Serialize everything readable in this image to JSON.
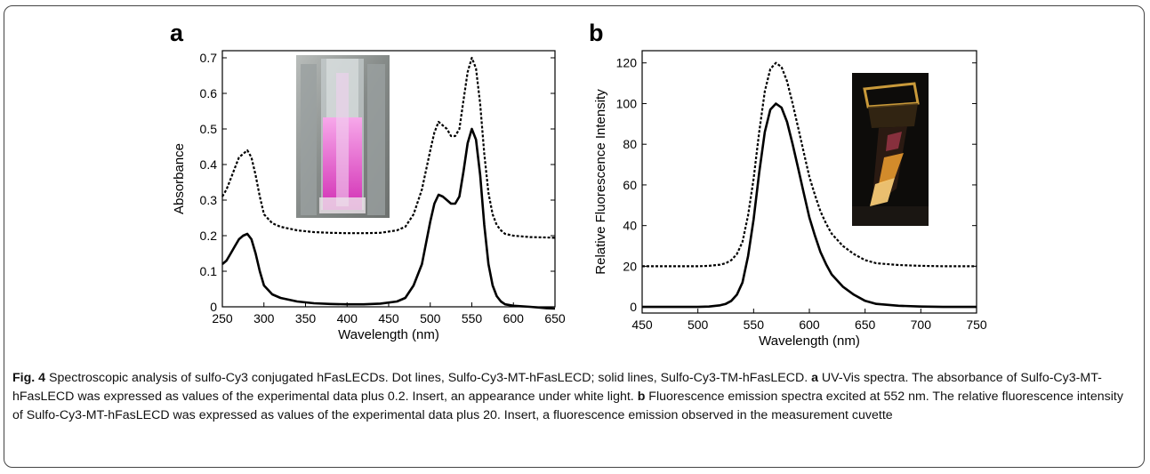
{
  "panels": [
    {
      "letter": "a",
      "chart_data": {
        "type": "line",
        "xlabel": "Wavelength (nm)",
        "ylabel": "Absorbance",
        "xlim": [
          250,
          650
        ],
        "ylim": [
          0,
          0.72
        ],
        "xticks": [
          250,
          300,
          350,
          400,
          450,
          500,
          550,
          600,
          650
        ],
        "yticks": [
          0,
          0.1,
          0.2,
          0.3,
          0.4,
          0.5,
          0.6,
          0.7
        ],
        "ytick_labels": [
          "0",
          "0.1",
          "0.2",
          "0.3",
          "0.4",
          "0.5",
          "0.6",
          "0.7"
        ],
        "series": [
          {
            "style": "dotted",
            "x": [
              250,
              255,
              260,
              265,
              270,
              275,
              280,
              285,
              290,
              295,
              300,
              310,
              320,
              340,
              360,
              380,
              400,
              420,
              440,
              460,
              470,
              480,
              490,
              500,
              505,
              510,
              515,
              520,
              525,
              530,
              535,
              540,
              545,
              550,
              555,
              560,
              565,
              570,
              575,
              580,
              585,
              590,
              600,
              620,
              640,
              650
            ],
            "y": [
              0.31,
              0.33,
              0.36,
              0.39,
              0.42,
              0.43,
              0.44,
              0.42,
              0.37,
              0.31,
              0.26,
              0.235,
              0.225,
              0.215,
              0.21,
              0.208,
              0.207,
              0.207,
              0.208,
              0.215,
              0.225,
              0.26,
              0.33,
              0.44,
              0.49,
              0.52,
              0.51,
              0.5,
              0.48,
              0.48,
              0.5,
              0.58,
              0.66,
              0.7,
              0.67,
              0.57,
              0.43,
              0.32,
              0.26,
              0.23,
              0.215,
              0.205,
              0.2,
              0.196,
              0.195,
              0.194
            ]
          },
          {
            "style": "solid",
            "x": [
              250,
              255,
              260,
              265,
              270,
              275,
              280,
              285,
              290,
              295,
              300,
              310,
              320,
              340,
              360,
              380,
              400,
              420,
              440,
              460,
              470,
              480,
              490,
              500,
              505,
              510,
              515,
              520,
              525,
              530,
              535,
              540,
              545,
              550,
              555,
              560,
              565,
              570,
              575,
              580,
              585,
              590,
              600,
              620,
              640,
              650
            ],
            "y": [
              0.12,
              0.13,
              0.15,
              0.17,
              0.19,
              0.2,
              0.205,
              0.19,
              0.15,
              0.1,
              0.06,
              0.035,
              0.025,
              0.015,
              0.01,
              0.008,
              0.007,
              0.007,
              0.009,
              0.015,
              0.025,
              0.06,
              0.12,
              0.24,
              0.29,
              0.315,
              0.31,
              0.3,
              0.29,
              0.29,
              0.31,
              0.38,
              0.46,
              0.5,
              0.47,
              0.37,
              0.23,
              0.12,
              0.06,
              0.03,
              0.015,
              0.007,
              0.003,
              0.0,
              -0.004,
              -0.005
            ]
          }
        ]
      }
    },
    {
      "letter": "b",
      "chart_data": {
        "type": "line",
        "xlabel": "Wavelength (nm)",
        "ylabel": "Relative Fluorescence Intensity",
        "xlim": [
          450,
          750
        ],
        "ylim": [
          -3,
          126
        ],
        "xticks": [
          450,
          500,
          550,
          600,
          650,
          700,
          750
        ],
        "yticks": [
          0,
          20,
          40,
          60,
          80,
          100,
          120
        ],
        "series": [
          {
            "style": "dotted",
            "x": [
              450,
              480,
              500,
              510,
              520,
              525,
              530,
              535,
              540,
              545,
              550,
              555,
              560,
              565,
              570,
              575,
              580,
              585,
              590,
              595,
              600,
              605,
              610,
              615,
              620,
              630,
              640,
              650,
              660,
              680,
              700,
              720,
              750
            ],
            "y": [
              20,
              20,
              20,
              20.2,
              20.8,
              21.5,
              23,
              26,
              32,
              45,
              63,
              86,
              106,
              117,
              120,
              118,
              111,
              100,
              88,
              76,
              64,
              55,
              47,
              41,
              36,
              30,
              26,
              23,
              21.5,
              20.6,
              20.2,
              20,
              20
            ]
          },
          {
            "style": "solid",
            "x": [
              450,
              480,
              500,
              510,
              520,
              525,
              530,
              535,
              540,
              545,
              550,
              555,
              560,
              565,
              570,
              575,
              580,
              585,
              590,
              595,
              600,
              605,
              610,
              615,
              620,
              630,
              640,
              650,
              660,
              680,
              700,
              720,
              750
            ],
            "y": [
              0,
              0,
              0,
              0.2,
              0.8,
              1.5,
              3,
              6,
              12,
              25,
              43,
              66,
              86,
              97,
              100,
              98,
              91,
              80,
              68,
              56,
              44,
              35,
              27,
              21,
              16,
              10,
              6,
              3,
              1.5,
              0.6,
              0.2,
              0,
              0
            ]
          }
        ]
      }
    }
  ],
  "caption": {
    "label": "Fig. 4",
    "text1": " Spectroscopic analysis of sulfo-Cy3 conjugated hFasLECDs. Dot lines, Sulfo-Cy3-MT-hFasLECD; solid lines, Sulfo-Cy3-TM-hFasLECD. ",
    "label_a": "a",
    "text2": " UV-Vis spectra. The absorbance of Sulfo-Cy3-MT-hFasLECD was expressed as values of the experimental data plus 0.2. Insert, an appearance under white light. ",
    "label_b": "b",
    "text3": " Fluorescence emission spectra excited at 552 nm. The relative fluorescence intensity of Sulfo-Cy3-MT-hFasLECD was expressed as values of the experimental data plus 20. Insert, a fluorescence emission observed in the measurement cuvette"
  },
  "colors": {
    "line": "#000000",
    "frame": "#444444",
    "inset_a_bg": "#8a8f8c",
    "inset_a_liquid": "#e040c0",
    "inset_b_bg": "#0d0c0a",
    "inset_b_glow": "#f2b03a"
  }
}
